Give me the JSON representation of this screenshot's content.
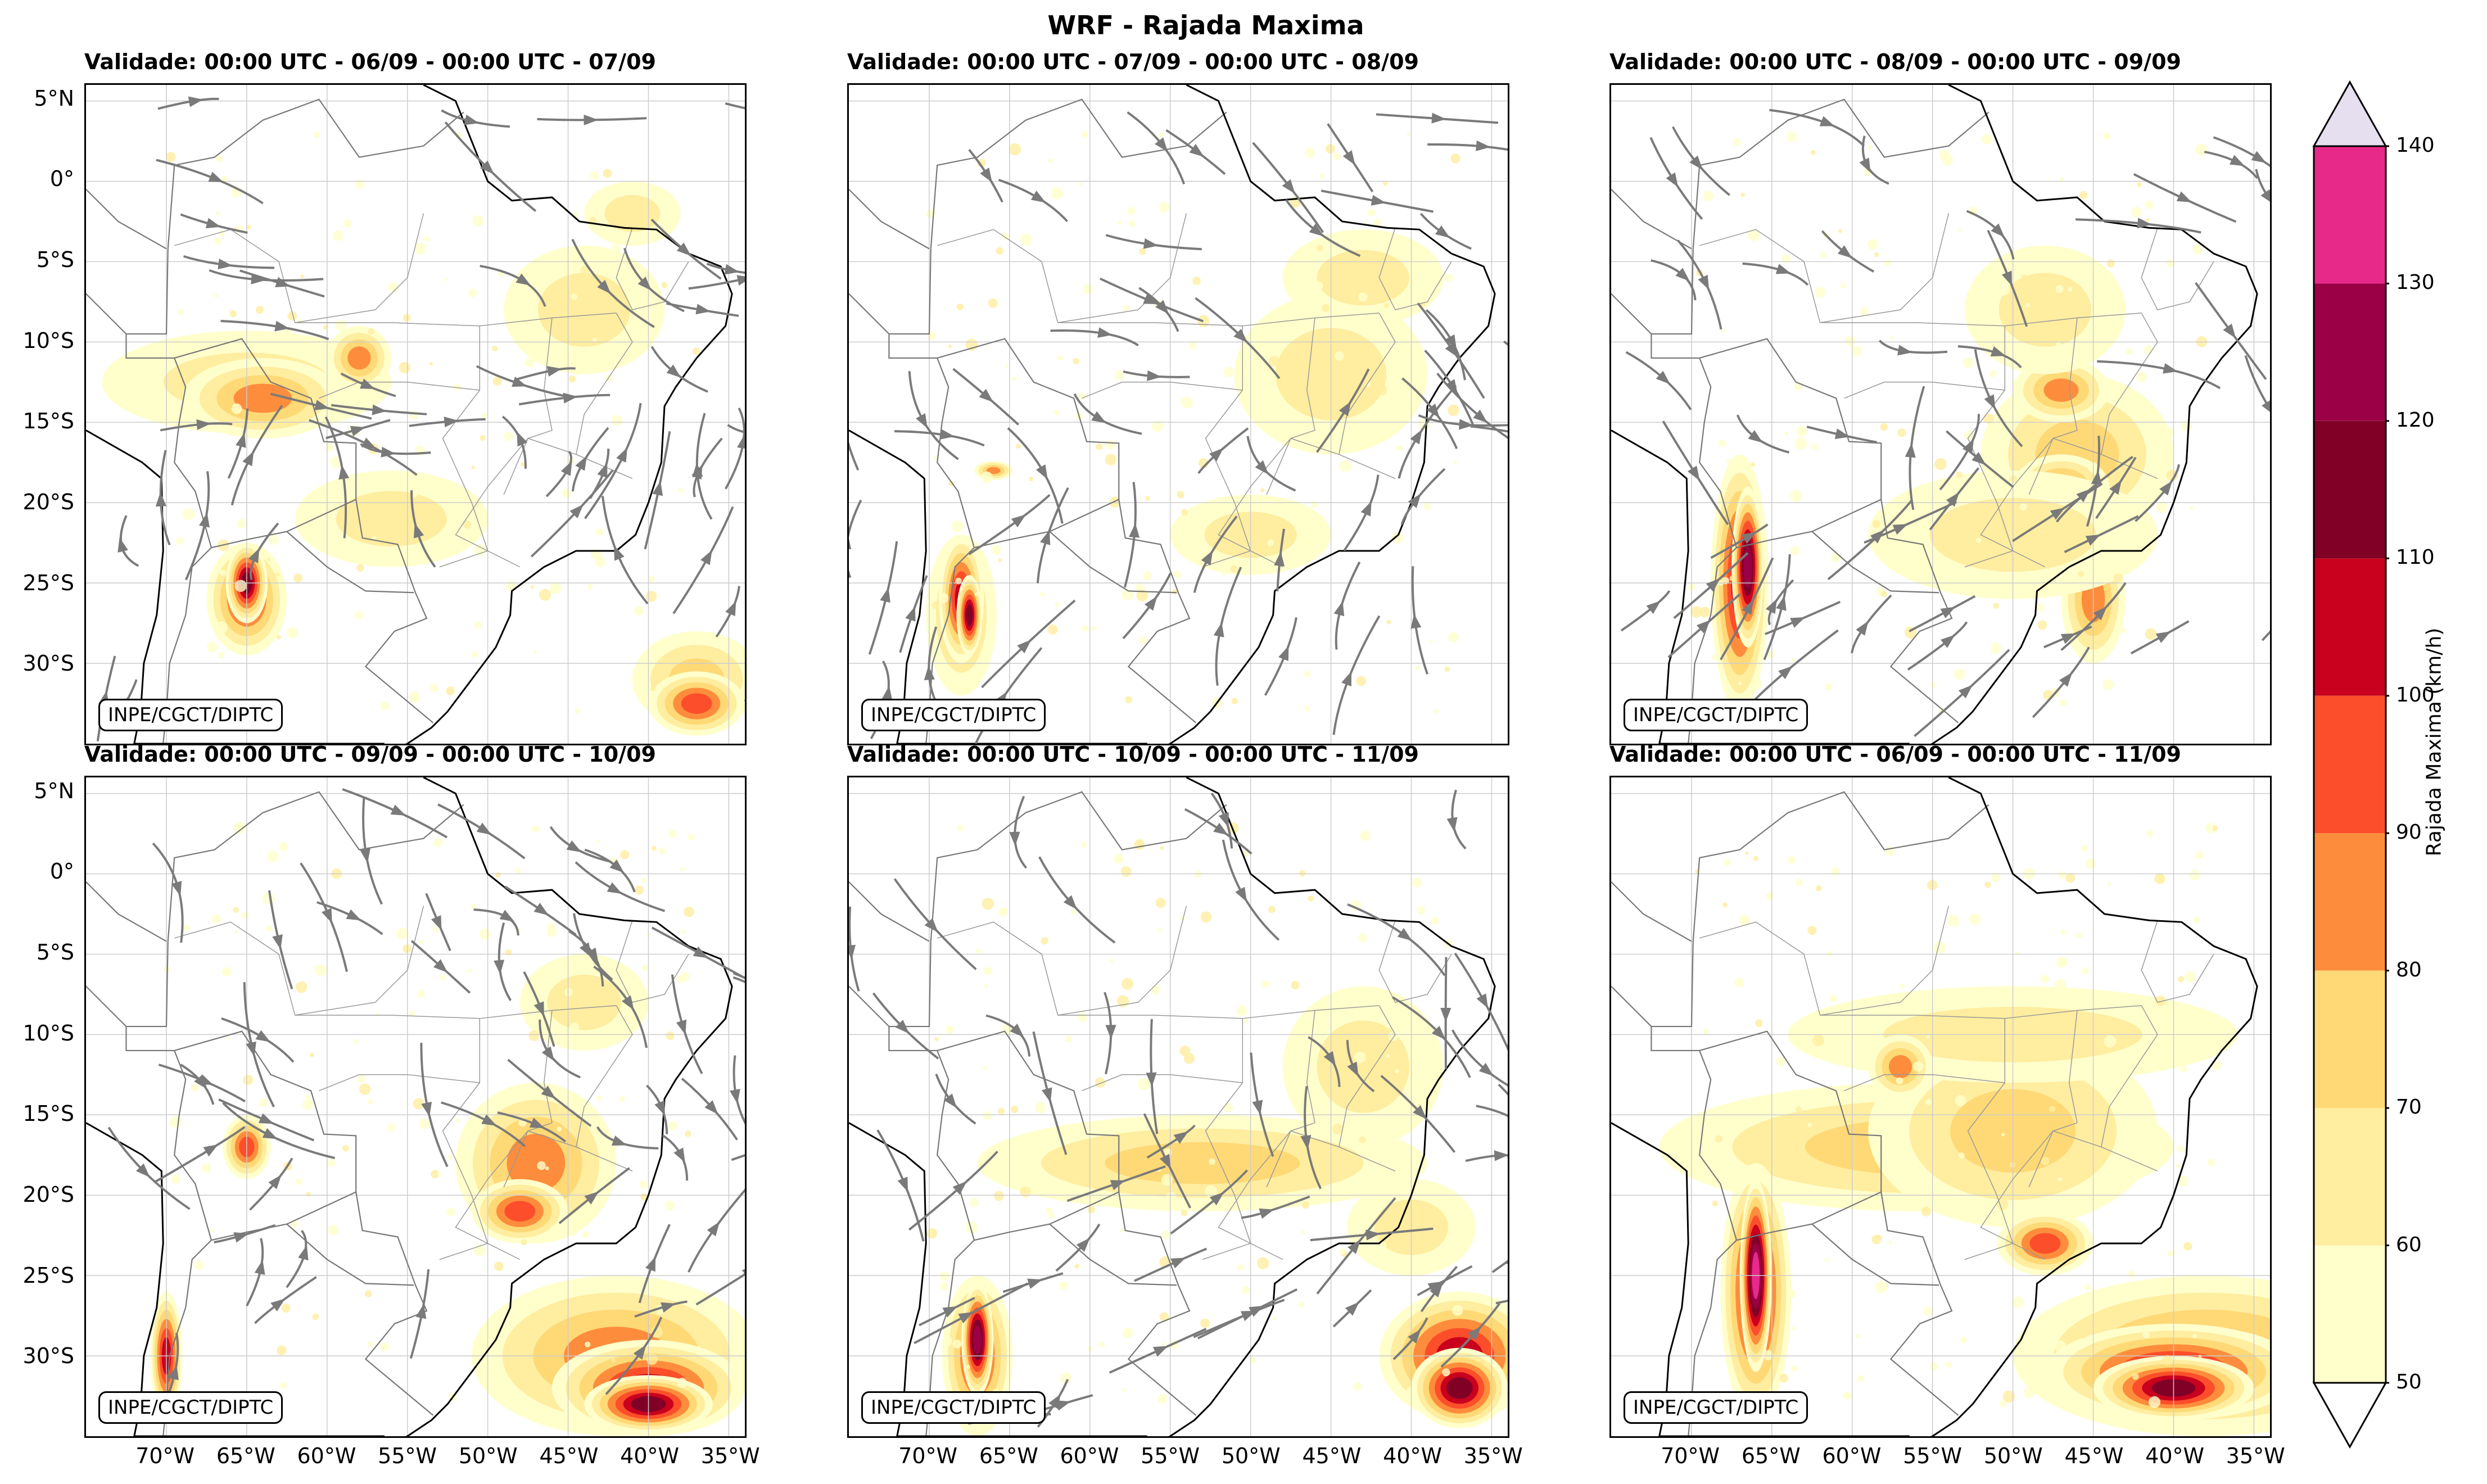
{
  "figure": {
    "title": "WRF - Rajada Maxima",
    "credit": "INPE/CGCT/DIPTC",
    "colorbar": {
      "label": "Rajada Maxima (km/h)",
      "levels": [
        50,
        60,
        70,
        80,
        90,
        100,
        110,
        120,
        130,
        140
      ],
      "colors": [
        "#ffffcc",
        "#ffeda0",
        "#fed976",
        "#fd8d3c",
        "#fc4e2a",
        "#c9001e",
        "#800026",
        "#9b0046",
        "#e7298a",
        "#c994c7",
        "#e6dff0"
      ],
      "extend": "both"
    },
    "lat_ticks": [
      "5°N",
      "0°",
      "5°S",
      "10°S",
      "15°S",
      "20°S",
      "25°S",
      "30°S"
    ],
    "lon_ticks": [
      "70°W",
      "65°W",
      "60°W",
      "55°W",
      "50°W",
      "45°W",
      "40°W",
      "35°W"
    ],
    "panels": [
      {
        "title": "Validade: 00:00 UTC - 06/09 - 00:00 UTC - 07/09"
      },
      {
        "title": "Validade: 00:00 UTC - 07/09 - 00:00 UTC - 08/09"
      },
      {
        "title": "Validade: 00:00 UTC - 08/09 - 00:00 UTC - 09/09"
      },
      {
        "title": "Validade: 00:00 UTC - 09/09 - 00:00 UTC - 10/09"
      },
      {
        "title": "Validade: 00:00 UTC - 10/09 - 00:00 UTC - 11/09"
      },
      {
        "title": "Validade: 00:00 UTC - 06/09 - 00:00 UTC - 11/09"
      }
    ]
  },
  "colors": {
    "streamline": "#7a7a7a",
    "grid": "#cccccc",
    "coast": "#000000",
    "border": "#777777"
  }
}
